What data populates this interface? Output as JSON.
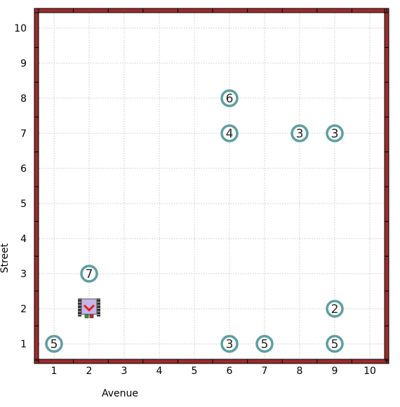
{
  "axes": {
    "x_title": "Avenue",
    "y_title": "Street",
    "x_ticks": [
      "1",
      "2",
      "3",
      "4",
      "5",
      "6",
      "7",
      "8",
      "9",
      "10"
    ],
    "y_ticks": [
      "1",
      "2",
      "3",
      "4",
      "5",
      "6",
      "7",
      "8",
      "9",
      "10"
    ]
  },
  "world": {
    "avenues": 10,
    "streets": 10,
    "wall_color": "#9b2c2c",
    "grid_color": "#c8c8c8"
  },
  "beepers": [
    {
      "avenue": 6,
      "street": 8,
      "count": "6"
    },
    {
      "avenue": 6,
      "street": 7,
      "count": "4"
    },
    {
      "avenue": 8,
      "street": 7,
      "count": "3"
    },
    {
      "avenue": 9,
      "street": 7,
      "count": "3"
    },
    {
      "avenue": 2,
      "street": 3,
      "count": "7"
    },
    {
      "avenue": 9,
      "street": 2,
      "count": "2"
    },
    {
      "avenue": 1,
      "street": 1,
      "count": "5"
    },
    {
      "avenue": 6,
      "street": 1,
      "count": "3"
    },
    {
      "avenue": 7,
      "street": 1,
      "count": "5"
    },
    {
      "avenue": 9,
      "street": 1,
      "count": "5"
    }
  ],
  "beeper_color": "#5f9ea0",
  "robot": {
    "avenue": 2,
    "street": 2,
    "facing": "south",
    "icon": "robot-icon"
  }
}
